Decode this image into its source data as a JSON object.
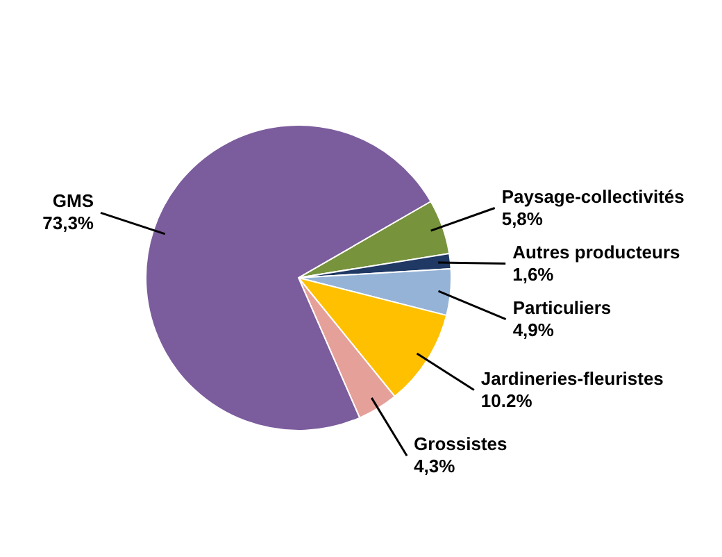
{
  "chart_data": {
    "type": "pie",
    "categories": [
      "Paysage-collectivités",
      "Autres producteurs",
      "Particuliers",
      "Jardineries-fleuristes",
      "Grossistes",
      "GMS"
    ],
    "values": [
      5.8,
      1.6,
      4.9,
      10.2,
      4.3,
      73.3
    ],
    "value_labels": [
      "5,8%",
      "1,6%",
      "4,9%",
      "10.2%",
      "4,3%",
      "73,3%"
    ],
    "colors": [
      "#77933c",
      "#1f3864",
      "#95b3d7",
      "#ffc000",
      "#e6a09a",
      "#7b5c9c"
    ]
  }
}
